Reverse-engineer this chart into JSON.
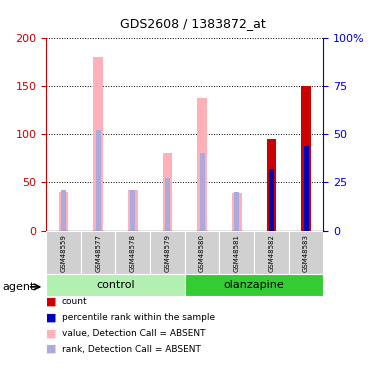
{
  "title": "GDS2608 / 1383872_at",
  "samples": [
    "GSM48559",
    "GSM48577",
    "GSM48578",
    "GSM48579",
    "GSM48580",
    "GSM48581",
    "GSM48582",
    "GSM48583"
  ],
  "groups": [
    {
      "label": "control",
      "indices": [
        0,
        1,
        2,
        3
      ],
      "color": "#b2f0b2"
    },
    {
      "label": "olanzapine",
      "indices": [
        4,
        5,
        6,
        7
      ],
      "color": "#33cc33"
    }
  ],
  "pink_value": [
    40,
    180,
    42,
    80,
    137,
    39,
    0,
    0
  ],
  "lightblue_rank": [
    21,
    52,
    21,
    27,
    40,
    20,
    0,
    45
  ],
  "red_count": [
    0,
    0,
    0,
    0,
    0,
    0,
    95,
    150
  ],
  "blue_pct": [
    0,
    0,
    0,
    0,
    0,
    0,
    32,
    44
  ],
  "left_ylim": [
    0,
    200
  ],
  "right_ylim": [
    0,
    100
  ],
  "left_yticks": [
    0,
    50,
    100,
    150,
    200
  ],
  "right_yticks": [
    0,
    25,
    50,
    75,
    100
  ],
  "right_yticklabels": [
    "0",
    "25",
    "50",
    "75",
    "100%"
  ],
  "left_color": "#cc0000",
  "right_color": "#0000cc",
  "pink_color": "#ffb0b8",
  "lightblue_color": "#aaaadd",
  "red_color": "#cc0000",
  "blue_color": "#0000bb",
  "agent_label": "agent",
  "legend_items": [
    {
      "color": "#cc0000",
      "label": "count"
    },
    {
      "color": "#0000bb",
      "label": "percentile rank within the sample"
    },
    {
      "color": "#ffb0b8",
      "label": "value, Detection Call = ABSENT"
    },
    {
      "color": "#aaaadd",
      "label": "rank, Detection Call = ABSENT"
    }
  ]
}
